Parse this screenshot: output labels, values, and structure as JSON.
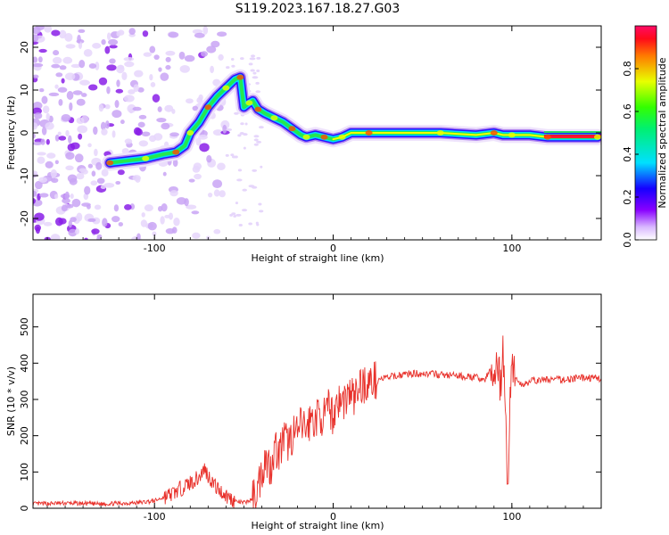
{
  "figure_title": "S119.2023.167.18.27.G03",
  "chart_data": [
    {
      "type": "heatmap",
      "title": "",
      "xlabel": "Height of straight line (km)",
      "ylabel": "Frequency (Hz)",
      "xlim": [
        -168,
        150
      ],
      "ylim": [
        -25,
        25
      ],
      "x_ticks": [
        -100,
        0,
        100
      ],
      "y_ticks": [
        -20,
        -10,
        0,
        10,
        20
      ],
      "colorbar": {
        "label": "Normalized spectral amplitude",
        "range": [
          0,
          1
        ],
        "ticks": [
          "0.0",
          "0.2",
          "0.4",
          "0.6",
          "0.8"
        ],
        "colormap": "white-violet-blue-cyan-green-yellow-red-magenta"
      },
      "ridge": {
        "x": [
          -125,
          -115,
          -105,
          -95,
          -88,
          -83,
          -80,
          -75,
          -70,
          -65,
          -60,
          -55,
          -52,
          -50,
          -47,
          -45,
          -42,
          -38,
          -33,
          -28,
          -23,
          -18,
          -15,
          -10,
          -5,
          0,
          5,
          10,
          20,
          40,
          60,
          80,
          90,
          95,
          100,
          110,
          120,
          140,
          148
        ],
        "y": [
          -7,
          -6.5,
          -6,
          -5,
          -4.5,
          -3,
          0,
          2.5,
          6,
          8.5,
          10.5,
          12.5,
          13,
          6,
          7,
          7.5,
          5.5,
          4.5,
          3.5,
          2.5,
          1,
          -0.5,
          -1,
          -0.5,
          -1,
          -1.5,
          -1,
          0,
          0,
          0,
          0,
          -0.5,
          0,
          -0.5,
          -0.5,
          -0.5,
          -1,
          -1,
          -1
        ]
      },
      "noise_region_x": [
        -168,
        -100
      ]
    },
    {
      "type": "line",
      "title": "",
      "xlabel": "Height of straight line (km)",
      "ylabel": "SNR (10 * v/v)",
      "xlim": [
        -168,
        150
      ],
      "ylim": [
        0,
        590
      ],
      "x_ticks": [
        -100,
        0,
        100
      ],
      "y_ticks": [
        0,
        100,
        200,
        300,
        400,
        500
      ],
      "series": [
        {
          "color": "#e8302a",
          "x": [
            -168,
            -150,
            -130,
            -110,
            -100,
            -90,
            -85,
            -80,
            -75,
            -72,
            -70,
            -65,
            -60,
            -55,
            -50,
            -45,
            -42,
            -40,
            -38,
            -35,
            -33,
            -30,
            -28,
            -25,
            -22,
            -20,
            -18,
            -15,
            -12,
            -10,
            -8,
            -5,
            -2,
            0,
            2,
            5,
            8,
            10,
            12,
            15,
            20,
            25,
            30,
            40,
            50,
            60,
            70,
            80,
            85,
            88,
            90,
            92,
            94,
            95,
            96,
            97,
            98,
            99,
            100,
            102,
            105,
            110,
            120,
            130,
            140,
            150
          ],
          "y": [
            12,
            14,
            12,
            15,
            20,
            40,
            55,
            70,
            85,
            110,
            90,
            55,
            35,
            20,
            15,
            25,
            60,
            100,
            140,
            110,
            170,
            150,
            190,
            180,
            210,
            200,
            230,
            220,
            250,
            240,
            260,
            250,
            280,
            250,
            300,
            290,
            310,
            320,
            300,
            340,
            345,
            355,
            360,
            370,
            372,
            368,
            365,
            360,
            355,
            380,
            350,
            420,
            310,
            480,
            300,
            150,
            75,
            300,
            420,
            360,
            340,
            350,
            355,
            355,
            360,
            358
          ]
        }
      ]
    }
  ]
}
